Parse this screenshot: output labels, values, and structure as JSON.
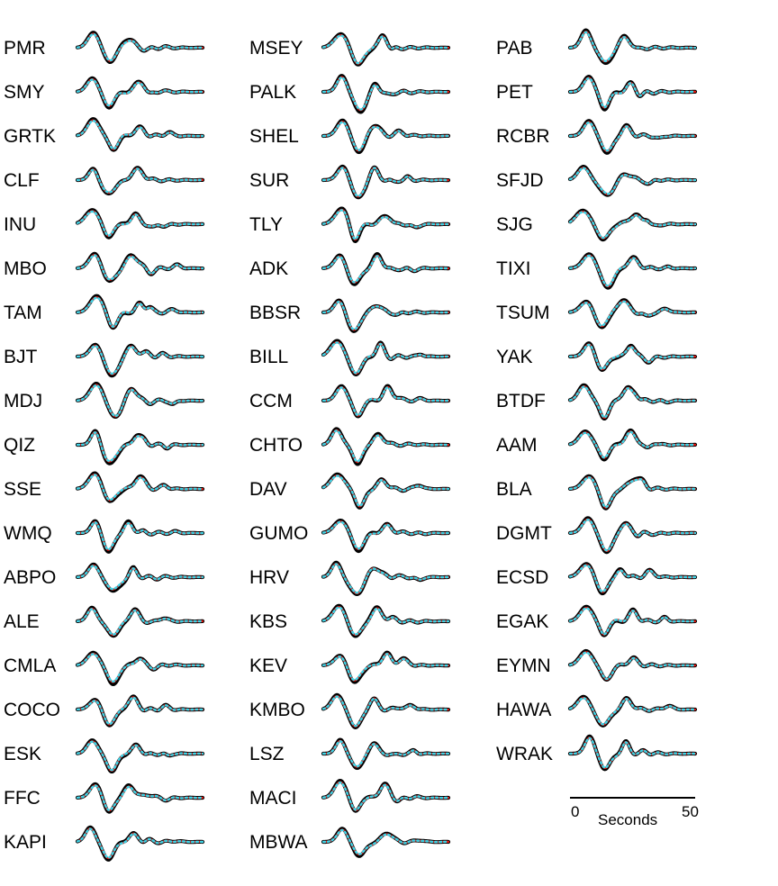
{
  "chart_data": {
    "type": "line",
    "title": "",
    "xlabel": "Seconds",
    "ylabel": "",
    "legend": "none",
    "grid": false,
    "series_styles": [
      {
        "role": "observed",
        "color": "#000000",
        "style": "thick solid"
      },
      {
        "role": "synthetic-1",
        "color": "#e8140c",
        "style": "solid"
      },
      {
        "role": "synthetic-2",
        "color": "#3fd3e6",
        "style": "dotted"
      }
    ],
    "columns": [
      [
        "PMR",
        "SMY",
        "GRTK",
        "CLF",
        "INU",
        "MBO",
        "TAM",
        "BJT",
        "MDJ",
        "QIZ",
        "SSE",
        "WMQ",
        "ABPO",
        "ALE",
        "CMLA",
        "COCO",
        "ESK",
        "FFC",
        "KAPI"
      ],
      [
        "MSEY",
        "PALK",
        "SHEL",
        "SUR",
        "TLY",
        "ADK",
        "BBSR",
        "BILL",
        "CCM",
        "CHTO",
        "DAV",
        "GUMO",
        "HRV",
        "KBS",
        "KEV",
        "KMBO",
        "LSZ",
        "MACI",
        "MBWA"
      ],
      [
        "PAB",
        "PET",
        "RCBR",
        "SFJD",
        "SJG",
        "TIXI",
        "TSUM",
        "YAK",
        "BTDF",
        "AAM",
        "BLA",
        "DGMT",
        "ECSD",
        "EGAK",
        "EYMN",
        "HAWA",
        "WRAK"
      ]
    ],
    "scale_bar": {
      "start_label": "0",
      "end_label": "50",
      "unit_label": "Seconds",
      "length_seconds": 50
    }
  }
}
